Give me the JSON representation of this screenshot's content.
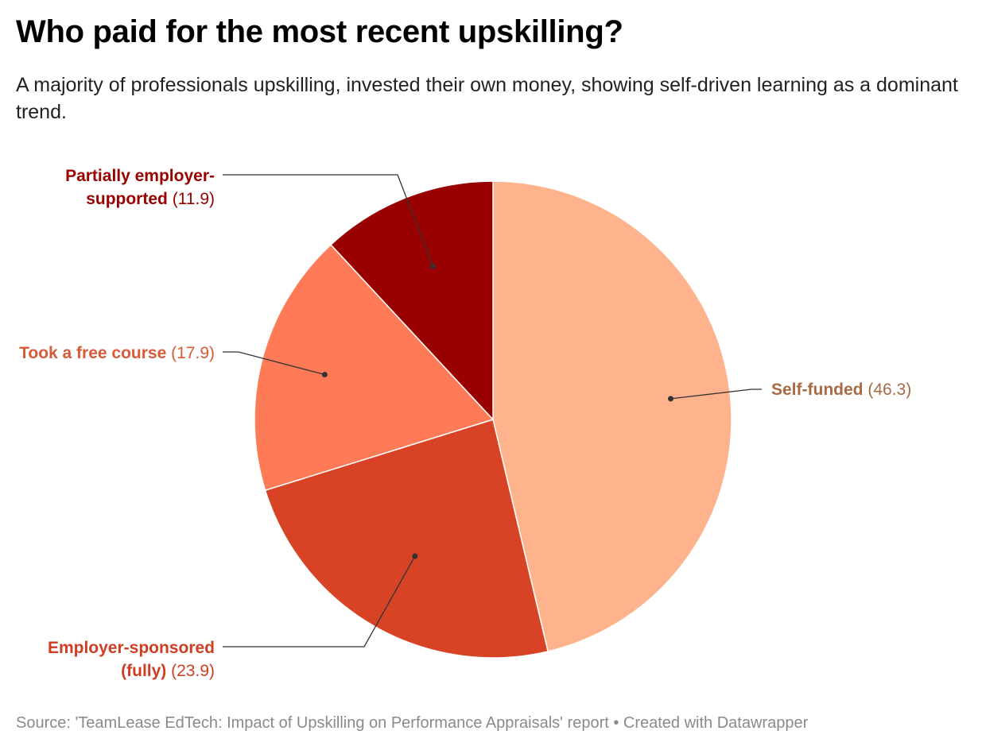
{
  "header": {
    "title": "Who paid for the most recent upskilling?",
    "subtitle": "A majority of professionals upskilling, invested their own money, showing self-driven learning as a dominant trend."
  },
  "chart_data": {
    "type": "pie",
    "title": "Who paid for the most recent upskilling?",
    "subtitle": "A majority of professionals upskilling, invested their own money, showing self-driven learning as a dominant trend.",
    "slices": [
      {
        "name_lines": [
          "Self-funded"
        ],
        "value_text": "(46.3)",
        "value": 46.3,
        "color": "#ffb38c",
        "label_color": "#a86a45"
      },
      {
        "name_lines": [
          "Employer-sponsored",
          "(fully)"
        ],
        "value_text": "(23.9)",
        "value": 23.9,
        "color": "#d84326",
        "label_color": "#cf3e22"
      },
      {
        "name_lines": [
          "Took a free course"
        ],
        "value_text": "(17.9)",
        "value": 17.9,
        "color": "#ff7a57",
        "label_color": "#d85a38"
      },
      {
        "name_lines": [
          "Partially employer-",
          "supported"
        ],
        "value_text": "(11.9)",
        "value": 11.9,
        "color": "#990000",
        "label_color": "#990000"
      }
    ],
    "start": "top",
    "direction": "clockwise",
    "legend": "none"
  },
  "footer": {
    "source": "Source: 'TeamLease EdTech: Impact of Upskilling on Performance Appraisals' report • Created with Datawrapper"
  }
}
